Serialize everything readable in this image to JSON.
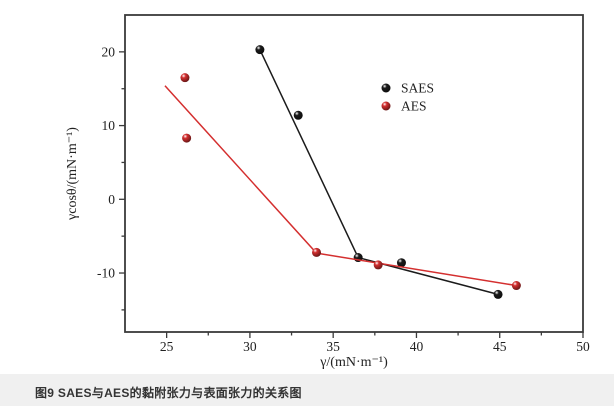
{
  "page": {
    "background": "#f0f0f0"
  },
  "figure": {
    "background": "#ffffff"
  },
  "caption": "图9 SAES与AES的黏附张力与表面张力的关系图",
  "chart_data": {
    "type": "scatter",
    "title": "",
    "xlabel": "γ/(mN·m⁻¹)",
    "ylabel": "γcosθ/(mN·m⁻¹)",
    "xlim": [
      22.5,
      50
    ],
    "ylim": [
      -18,
      25
    ],
    "x_major_ticks": [
      25,
      30,
      35,
      40,
      45,
      50
    ],
    "x_minor_ticks": [
      27.5,
      32.5,
      37.5,
      42.5,
      47.5
    ],
    "y_major_ticks": [
      -10,
      0,
      10,
      20
    ],
    "y_minor_ticks": [
      -15,
      -5,
      5,
      15
    ],
    "grid": false,
    "axis_color": "#3a3a3a",
    "tick_label_color": "#222222",
    "legend": {
      "position": "inside-upper-right",
      "entries": [
        "SAES",
        "AES"
      ]
    },
    "series": [
      {
        "name": "SAES",
        "color": "#1b1b1b",
        "marker": "sphere",
        "points": [
          [
            30.6,
            20.3
          ],
          [
            32.9,
            11.4
          ],
          [
            36.5,
            -7.9
          ],
          [
            39.1,
            -8.6
          ],
          [
            44.9,
            -12.9
          ]
        ],
        "fit_line": [
          [
            30.6,
            20.3
          ],
          [
            36.5,
            -7.9
          ],
          [
            44.9,
            -12.9
          ]
        ]
      },
      {
        "name": "AES",
        "color": "#d42f2f",
        "marker": "sphere",
        "points": [
          [
            26.1,
            16.5
          ],
          [
            26.2,
            8.3
          ],
          [
            34.0,
            -7.2
          ],
          [
            37.7,
            -8.9
          ],
          [
            46.0,
            -11.7
          ]
        ],
        "fit_line": [
          [
            24.9,
            15.4
          ],
          [
            34.0,
            -7.3
          ],
          [
            46.0,
            -11.7
          ]
        ]
      }
    ]
  }
}
